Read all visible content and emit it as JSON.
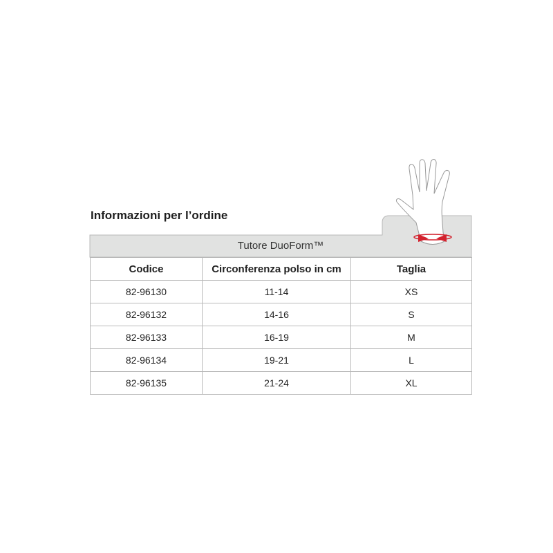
{
  "title": "Informazioni per l’ordine",
  "product": "Tutore DuoForm™",
  "table": {
    "headers": [
      "Codice",
      "Circonferenza polso in cm",
      "Taglia"
    ],
    "rows": [
      [
        "82-96130",
        "11-14",
        "XS"
      ],
      [
        "82-96132",
        "14-16",
        "S"
      ],
      [
        "82-96133",
        "16-19",
        "M"
      ],
      [
        "82-96134",
        "19-21",
        "L"
      ],
      [
        "82-96135",
        "21-24",
        "XL"
      ]
    ]
  },
  "colors": {
    "band": "#e1e2e1",
    "arrow": "#d3222e"
  },
  "icons": {
    "illustration": "hand-wrist-measure-icon"
  }
}
